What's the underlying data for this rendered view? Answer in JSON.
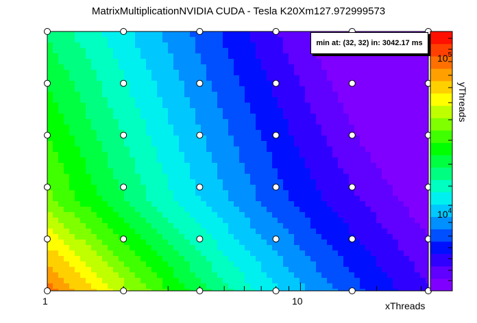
{
  "title": "MatrixMultiplicationNVIDIA CUDA - Tesla K20Xm127.972999573",
  "info_box": "min at: (32, 32) in: 3042.17 ms",
  "chart_data": {
    "type": "heatmap",
    "title": "MatrixMultiplicationNVIDIA CUDA - Tesla K20Xm127.972999573",
    "xlabel": "xThreads",
    "ylabel": "yThreads",
    "x_scale": "log",
    "y_scale": "log",
    "z_scale": "log",
    "x_ticks": [
      "1",
      "10"
    ],
    "z_ticks": [
      "10^4",
      "10^5"
    ],
    "x": [
      1,
      2,
      4,
      8,
      16,
      32
    ],
    "y": [
      1,
      2,
      4,
      8,
      16,
      32
    ],
    "z_unit": "ms",
    "min": {
      "x": 32,
      "y": 32,
      "value": 3042.17
    },
    "palette_note": "rainbow color scale (red high to violet low)"
  },
  "axis": {
    "x_tick_1": "1",
    "x_tick_10": "10",
    "xlabel": "xThreads",
    "ylabel": "yThreads",
    "z_tick_low": "10",
    "z_tick_low_exp": "4",
    "z_tick_high": "10",
    "z_tick_high_exp": "5"
  }
}
